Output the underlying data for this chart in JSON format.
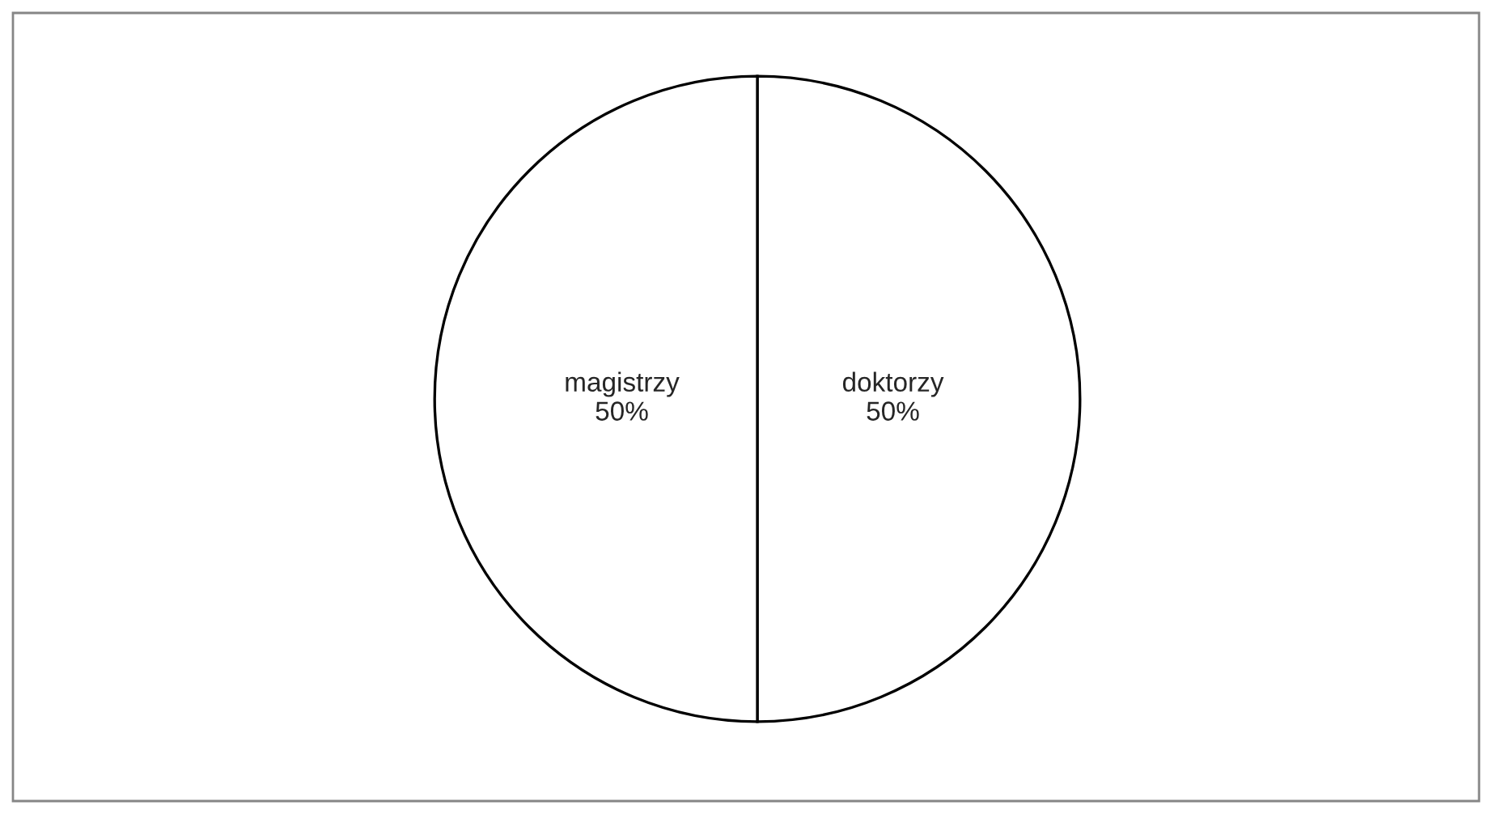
{
  "chart_data": {
    "type": "pie",
    "categories": [
      "doktorzy",
      "magistrzy"
    ],
    "values": [
      50,
      50
    ],
    "value_labels": [
      "50%",
      "50%"
    ],
    "colors": [
      "#ffffff",
      "#ffffff"
    ],
    "legend": false
  }
}
